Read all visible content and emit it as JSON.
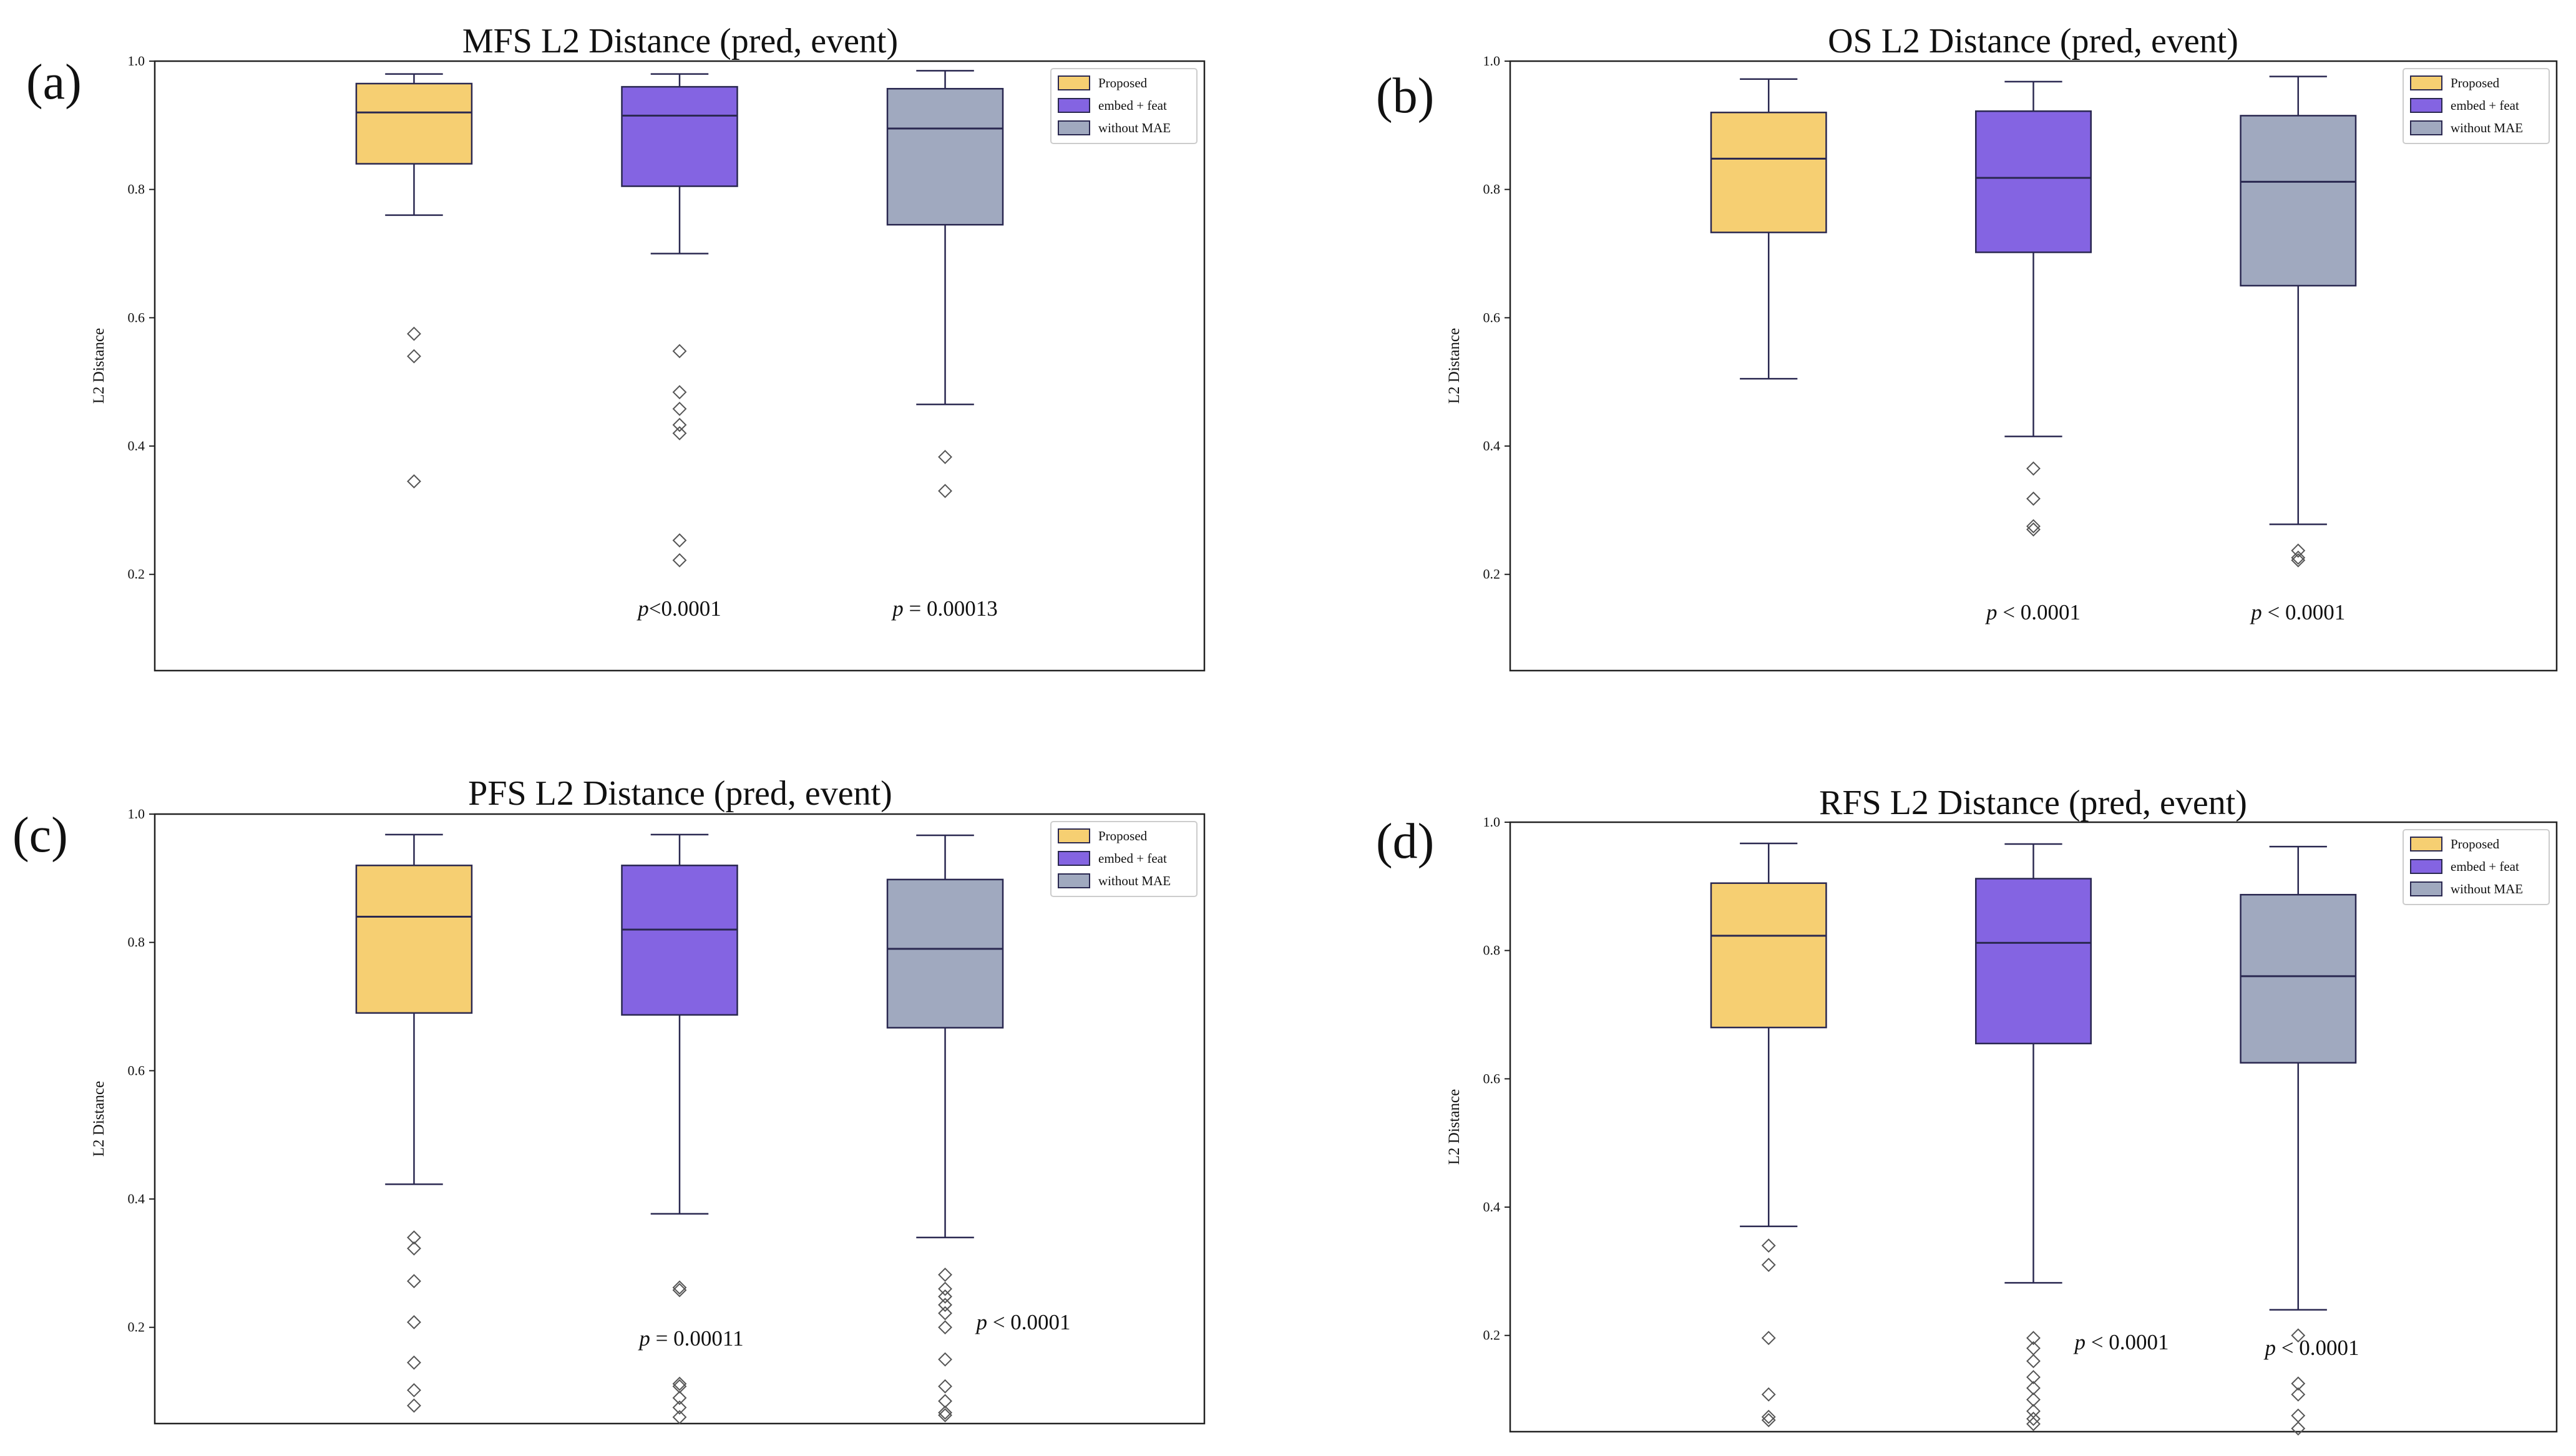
{
  "colors": {
    "Proposed": "#F6CF72",
    "embed + feat": "#8464E2",
    "without MAE": "#A0A9BF",
    "edge": "#2A2850"
  },
  "legend_placement": "top-right",
  "chart_data": [
    {
      "type": "box",
      "panel_label": "(a)",
      "title": "MFS L2 Distance (pred, event)",
      "ylabel": "L2 Distance",
      "ylim": [
        0.05,
        1.0
      ],
      "yticks": [
        "0.2",
        "0.4",
        "0.6",
        "0.8",
        "1.0"
      ],
      "legend": [
        "Proposed",
        "embed + feat",
        "without MAE"
      ],
      "series": [
        {
          "name": "Proposed",
          "whisker_low": 0.76,
          "q1": 0.84,
          "median": 0.92,
          "q3": 0.965,
          "whisker_high": 0.98,
          "outliers": [
            0.575,
            0.54,
            0.345
          ],
          "p_prefix": "",
          "p_rest": ""
        },
        {
          "name": "embed + feat",
          "whisker_low": 0.7,
          "q1": 0.805,
          "median": 0.915,
          "q3": 0.96,
          "whisker_high": 0.98,
          "outliers": [
            0.548,
            0.484,
            0.458,
            0.433,
            0.42,
            0.253,
            0.222
          ],
          "p_prefix": "p",
          "p_rest": "<0.0001"
        },
        {
          "name": "without MAE",
          "whisker_low": 0.465,
          "q1": 0.745,
          "median": 0.895,
          "q3": 0.957,
          "whisker_high": 0.985,
          "outliers": [
            0.383,
            0.33
          ],
          "p_prefix": "p",
          "p_rest": " = 0.00013"
        }
      ]
    },
    {
      "type": "box",
      "panel_label": "(b)",
      "title": "OS L2 Distance (pred, event)",
      "ylabel": "L2 Distance",
      "ylim": [
        0.05,
        1.0
      ],
      "yticks": [
        "0.2",
        "0.4",
        "0.6",
        "0.8",
        "1.0"
      ],
      "legend": [
        "Proposed",
        "embed + feat",
        "without MAE"
      ],
      "series": [
        {
          "name": "Proposed",
          "whisker_low": 0.505,
          "q1": 0.733,
          "median": 0.848,
          "q3": 0.92,
          "whisker_high": 0.972,
          "outliers": [],
          "p_prefix": "",
          "p_rest": ""
        },
        {
          "name": "embed + feat",
          "whisker_low": 0.415,
          "q1": 0.702,
          "median": 0.818,
          "q3": 0.922,
          "whisker_high": 0.968,
          "outliers": [
            0.365,
            0.318,
            0.275,
            0.27
          ],
          "p_prefix": "p",
          "p_rest": " < 0.0001"
        },
        {
          "name": "without MAE",
          "whisker_low": 0.278,
          "q1": 0.65,
          "median": 0.812,
          "q3": 0.915,
          "whisker_high": 0.976,
          "outliers": [
            0.237,
            0.226,
            0.222
          ],
          "p_prefix": "p",
          "p_rest": " < 0.0001"
        }
      ]
    },
    {
      "type": "box",
      "panel_label": "(c)",
      "title": "PFS L2 Distance (pred, event)",
      "ylabel": "L2 Distance",
      "ylim": [
        0.05,
        1.0
      ],
      "yticks": [
        "0.2",
        "0.4",
        "0.6",
        "0.8",
        "1.0"
      ],
      "legend": [
        "Proposed",
        "embed + feat",
        "without MAE"
      ],
      "series": [
        {
          "name": "Proposed",
          "whisker_low": 0.423,
          "q1": 0.69,
          "median": 0.84,
          "q3": 0.92,
          "whisker_high": 0.968,
          "outliers": [
            0.34,
            0.323,
            0.272,
            0.208,
            0.145,
            0.102,
            0.078
          ],
          "p_prefix": "",
          "p_rest": ""
        },
        {
          "name": "embed + feat",
          "whisker_low": 0.377,
          "q1": 0.687,
          "median": 0.82,
          "q3": 0.92,
          "whisker_high": 0.968,
          "outliers": [
            0.262,
            0.258,
            0.112,
            0.108,
            0.09,
            0.075,
            0.06
          ],
          "p_prefix": "p",
          "p_rest": " = 0.00011"
        },
        {
          "name": "without MAE",
          "whisker_low": 0.34,
          "q1": 0.667,
          "median": 0.79,
          "q3": 0.898,
          "whisker_high": 0.967,
          "outliers": [
            0.282,
            0.26,
            0.248,
            0.235,
            0.222,
            0.2,
            0.15,
            0.108,
            0.085,
            0.067,
            0.063
          ],
          "p_prefix": "p",
          "p_rest": " < 0.0001"
        }
      ]
    },
    {
      "type": "box",
      "panel_label": "(d)",
      "title": "RFS L2 Distance (pred, event)",
      "ylabel": "L2 Distance",
      "ylim": [
        0.05,
        1.0
      ],
      "yticks": [
        "0.2",
        "0.4",
        "0.6",
        "0.8",
        "1.0"
      ],
      "legend": [
        "Proposed",
        "embed + feat",
        "without MAE"
      ],
      "series": [
        {
          "name": "Proposed",
          "whisker_low": 0.37,
          "q1": 0.68,
          "median": 0.823,
          "q3": 0.905,
          "whisker_high": 0.967,
          "outliers": [
            0.34,
            0.31,
            0.196,
            0.108,
            0.073,
            0.068
          ],
          "p_prefix": "",
          "p_rest": ""
        },
        {
          "name": "embed + feat",
          "whisker_low": 0.282,
          "q1": 0.655,
          "median": 0.812,
          "q3": 0.912,
          "whisker_high": 0.966,
          "outliers": [
            0.196,
            0.18,
            0.16,
            0.135,
            0.118,
            0.1,
            0.082,
            0.07,
            0.062
          ],
          "p_prefix": "p",
          "p_rest": " < 0.0001"
        },
        {
          "name": "without MAE",
          "whisker_low": 0.24,
          "q1": 0.625,
          "median": 0.76,
          "q3": 0.887,
          "whisker_high": 0.962,
          "outliers": [
            0.2,
            0.125,
            0.108,
            0.075,
            0.055
          ],
          "p_prefix": "p",
          "p_rest": " < 0.0001"
        }
      ]
    }
  ]
}
